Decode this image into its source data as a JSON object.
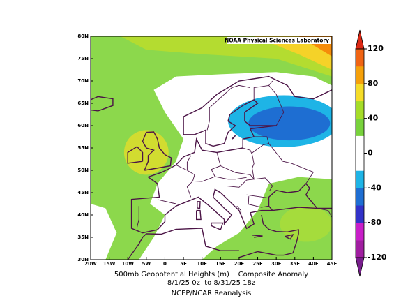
{
  "map": {
    "attribution": "NOAA Physical Sciences Laboratory",
    "lat_labels": [
      "80N",
      "75N",
      "70N",
      "65N",
      "60N",
      "55N",
      "50N",
      "45N",
      "40N",
      "35N",
      "30N"
    ],
    "lon_labels": [
      "20W",
      "15W",
      "10W",
      "5W",
      "0",
      "5E",
      "10E",
      "15E",
      "20E",
      "25E",
      "30E",
      "35E",
      "40E",
      "45E"
    ]
  },
  "colorbar": {
    "ticks": [
      120,
      80,
      40,
      0,
      -40,
      -80,
      -120
    ],
    "lim": [
      -120,
      120
    ]
  },
  "caption": [
    "500mb Geopotential Heights (m)    Composite Anomaly",
    "8/1/25 0z  to 8/31/25 18z",
    "NCEP/NCAR Reanalysis"
  ]
}
